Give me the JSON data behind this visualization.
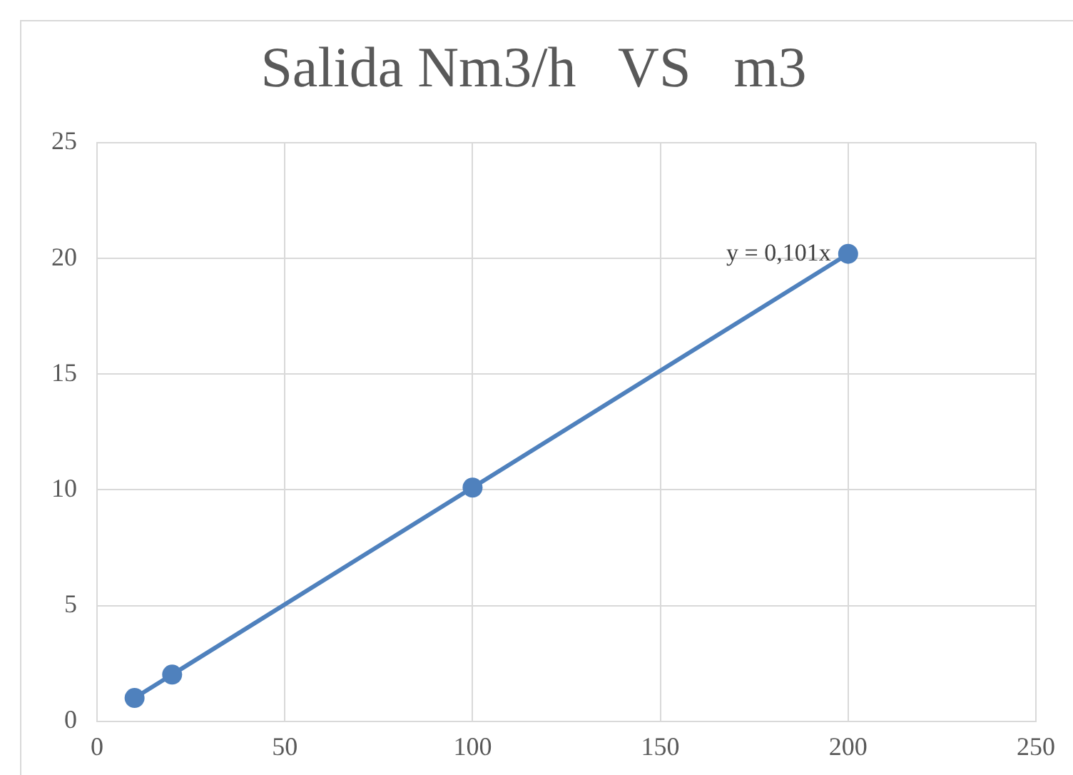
{
  "chart_data": {
    "type": "scatter",
    "title": "Salida Nm3/h   VS   m3",
    "x": [
      10,
      20,
      100,
      200
    ],
    "series": [
      {
        "type": "line",
        "color": "#4f81bd",
        "values": [
          1.01,
          2.02,
          10.1,
          20.2
        ]
      }
    ],
    "xlim": [
      0,
      250
    ],
    "xticks": [
      0,
      50,
      100,
      150,
      200,
      250
    ],
    "ylim": [
      0,
      25
    ],
    "yticks": [
      0,
      5,
      10,
      15,
      20,
      25
    ],
    "grid": true,
    "legend": false,
    "marker": "circle",
    "line_style": "solid",
    "annotations": [
      {
        "text": "y = 0,101x",
        "x": 200,
        "y": 20.2
      }
    ]
  }
}
